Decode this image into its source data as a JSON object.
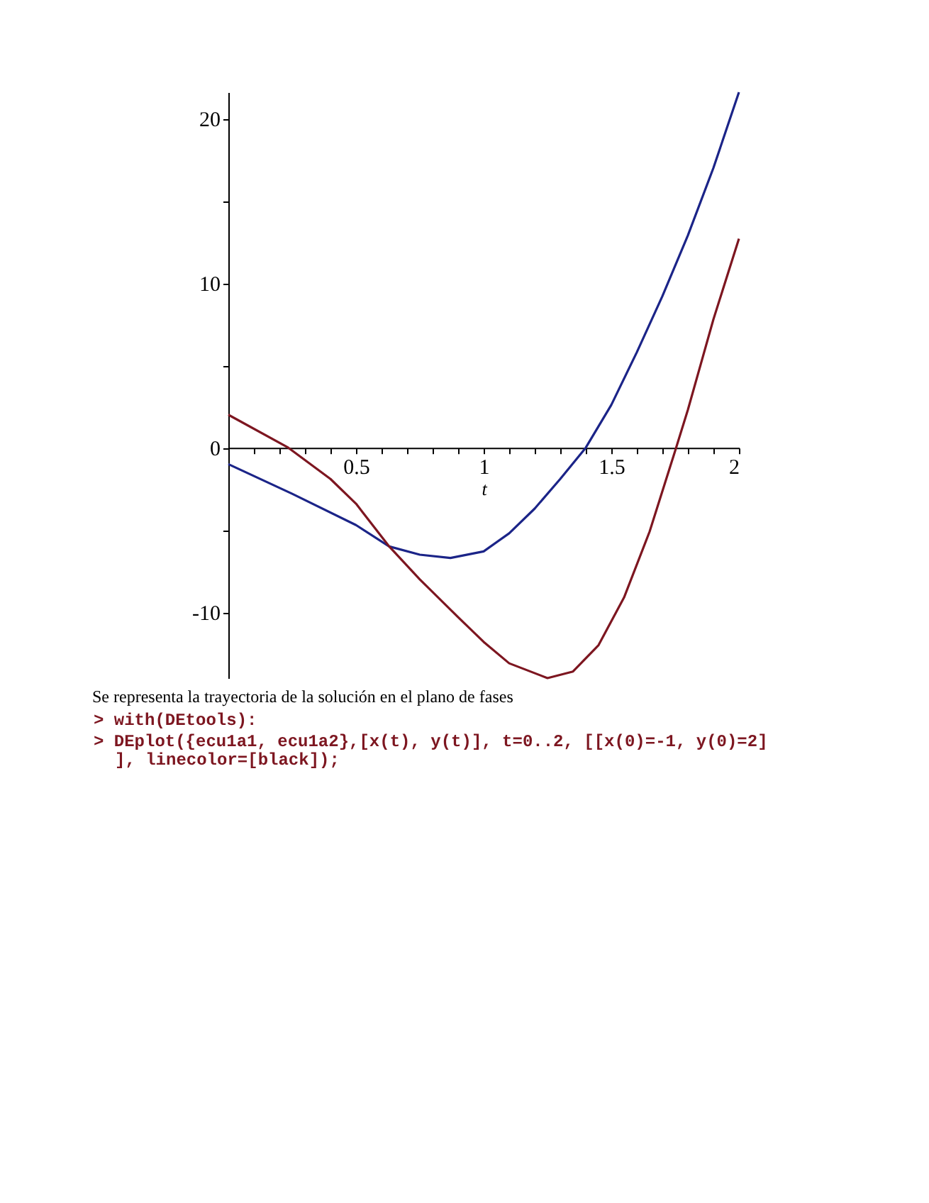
{
  "chart_data": {
    "type": "line",
    "xlabel": "t",
    "xlim": [
      0,
      2
    ],
    "xticks": [
      {
        "value": 0.1,
        "label": null
      },
      {
        "value": 0.2,
        "label": null
      },
      {
        "value": 0.3,
        "label": null
      },
      {
        "value": 0.4,
        "label": null
      },
      0.5,
      {
        "value": 0.6,
        "label": null
      },
      {
        "value": 0.7,
        "label": null
      },
      {
        "value": 0.8,
        "label": null
      },
      {
        "value": 0.9,
        "label": null
      },
      1,
      {
        "value": 1.1,
        "label": null
      },
      {
        "value": 1.2,
        "label": null
      },
      {
        "value": 1.3,
        "label": null
      },
      {
        "value": 1.4,
        "label": null
      },
      1.5,
      {
        "value": 1.6,
        "label": null
      },
      {
        "value": 1.7,
        "label": null
      },
      {
        "value": 1.8,
        "label": null
      },
      {
        "value": 1.9,
        "label": null
      },
      2
    ],
    "ylim": [
      -14,
      21.6
    ],
    "yticks": [
      -10,
      {
        "value": -5,
        "label": null
      },
      0,
      {
        "value": 5,
        "label": null
      },
      10,
      {
        "value": 15,
        "label": null
      },
      20
    ],
    "grid": false,
    "line_style": "solid",
    "series": [
      {
        "color": "#1b2488",
        "x": [
          0,
          0.25,
          0.5,
          0.63,
          0.75,
          0.87,
          1,
          1.1,
          1.2,
          1.3,
          1.4,
          1.5,
          1.6,
          1.7,
          1.8,
          1.9,
          2
        ],
        "values": [
          -1.0,
          -2.8,
          -4.7,
          -6.0,
          -6.5,
          -6.7,
          -6.3,
          -5.2,
          -3.7,
          -1.9,
          0,
          2.6,
          5.8,
          9.2,
          12.9,
          17.0,
          21.6
        ]
      },
      {
        "color": "#7d1620",
        "x": [
          0,
          0.235,
          0.4,
          0.5,
          0.63,
          0.75,
          0.9,
          1.0,
          1.1,
          1.25,
          1.35,
          1.45,
          1.55,
          1.65,
          1.75,
          1.8,
          1.9,
          2
        ],
        "values": [
          2.0,
          0,
          -1.9,
          -3.4,
          -6.0,
          -8.0,
          -10.3,
          -11.8,
          -13.1,
          -14.0,
          -13.6,
          -12.0,
          -9.1,
          -5.1,
          -0.2,
          2.3,
          7.8,
          12.7
        ]
      }
    ],
    "annotations": [
      "Se representa la trayectoria de la solución en el plano de fases",
      "> with(DEtools):",
      "> DEplot({ecu1a1, ecu1a2},[x(t), y(t)], t=0..2, [[x(0)=-1, y(0)=2]",
      "], linecolor=[black]);"
    ]
  }
}
